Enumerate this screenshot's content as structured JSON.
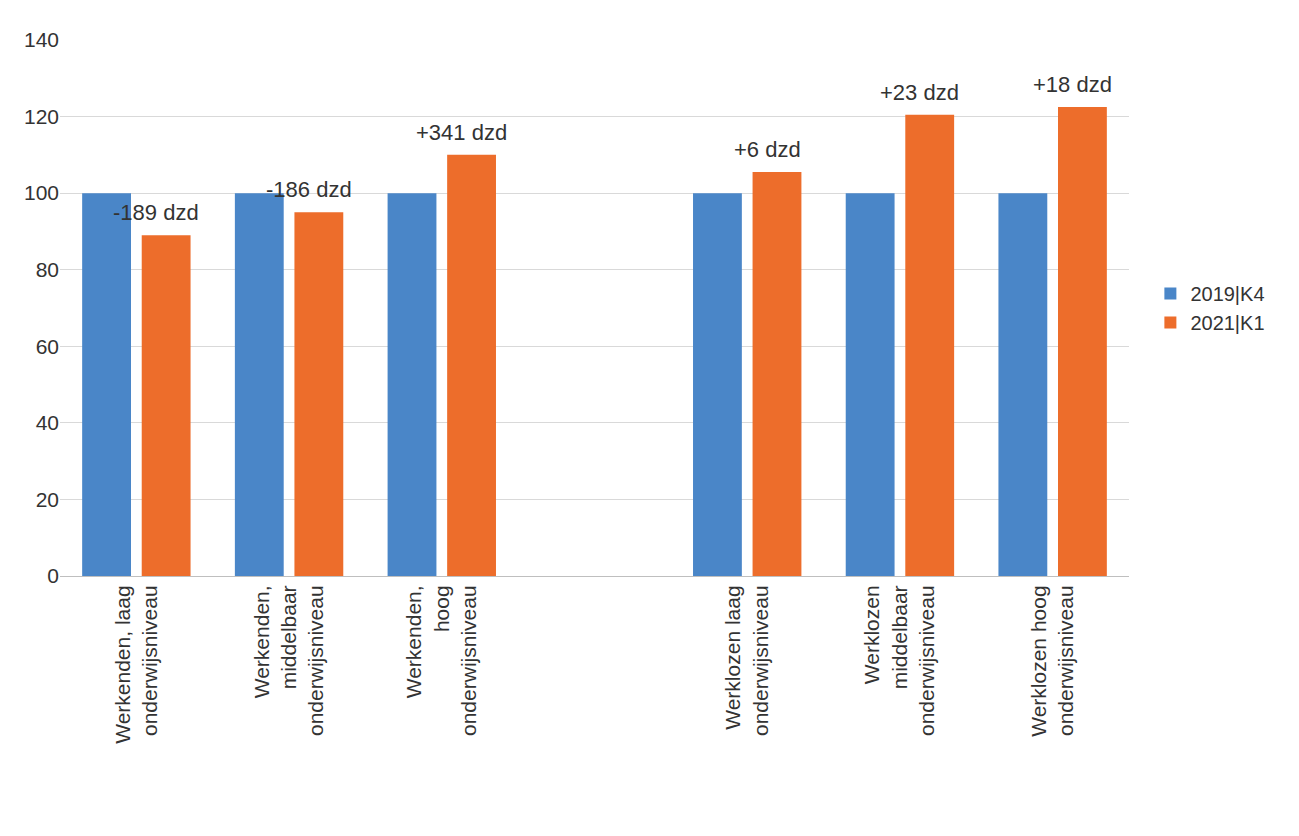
{
  "chart_data": {
    "type": "bar",
    "categories": [
      "Werkenden, laag\nonderwijsniveau",
      "Werkenden,\nmiddelbaar\nonderwijsniveau",
      "Werkenden,\nhoog\nonderwijsniveau",
      null,
      "Werklozen laag\nonderwijsniveau",
      "Werklozen\nmiddelbaar\nonderwijsniveau",
      "Werklozen hoog\nonderwijsniveau"
    ],
    "series": [
      {
        "name": "2019|K4",
        "color": "#4a86c8",
        "values": [
          100,
          100,
          100,
          null,
          100,
          100,
          100
        ]
      },
      {
        "name": "2021|K1",
        "color": "#ed6d2b",
        "values": [
          89,
          95,
          110,
          null,
          105.5,
          120.5,
          122.5
        ],
        "annotations": [
          "-189 dzd",
          "-186 dzd",
          "+341 dzd",
          null,
          "+6 dzd",
          "+23 dzd",
          "+18 dzd"
        ]
      }
    ],
    "ylim": [
      0,
      140
    ],
    "yticks": [
      0,
      20,
      40,
      60,
      80,
      100,
      120,
      140
    ],
    "grid": true,
    "legend": "right"
  }
}
